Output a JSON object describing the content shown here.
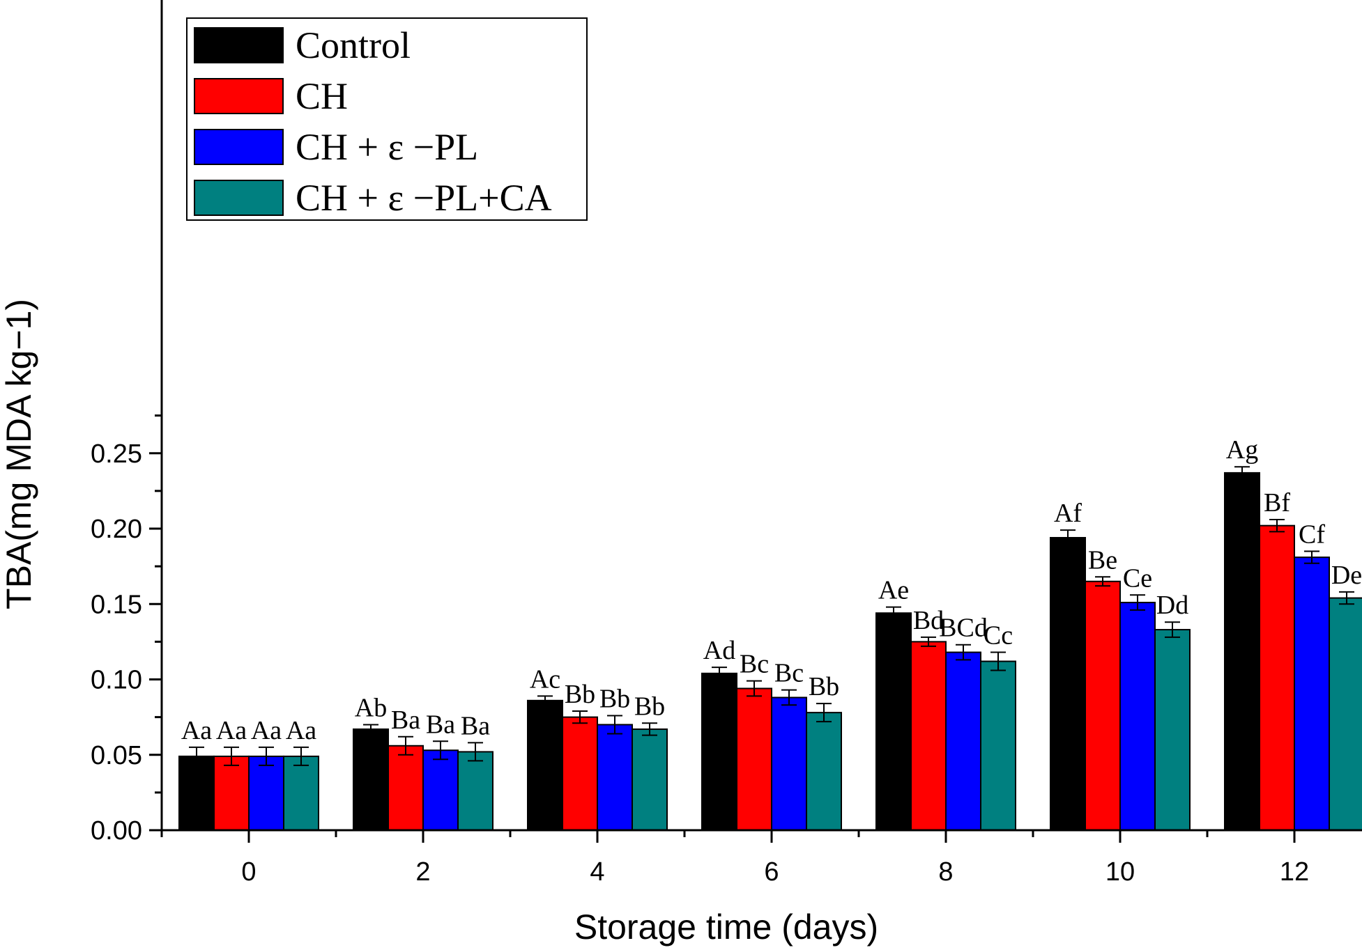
{
  "chart_data": {
    "type": "bar",
    "title": "",
    "xlabel": "Storage time (days)",
    "ylabel": "TBA(mg MDA kg−1)",
    "ylim": [
      0,
      0.275
    ],
    "yticks": [
      "0.00",
      "0.05",
      "0.10",
      "0.15",
      "0.20",
      "0.25"
    ],
    "grid": false,
    "legend_position": "top-left",
    "categories": [
      "0",
      "2",
      "4",
      "6",
      "8",
      "10",
      "12"
    ],
    "series": [
      {
        "name": "Control",
        "color": "#000000",
        "values": [
          0.049,
          0.067,
          0.086,
          0.104,
          0.144,
          0.194,
          0.237
        ],
        "errors": [
          0.006,
          0.003,
          0.003,
          0.004,
          0.004,
          0.005,
          0.004
        ],
        "labels": [
          "Aa",
          "Ab",
          "Ac",
          "Ad",
          "Ae",
          "Af",
          "Ag"
        ]
      },
      {
        "name": "CH",
        "color": "#ff0000",
        "values": [
          0.049,
          0.056,
          0.075,
          0.094,
          0.125,
          0.165,
          0.202
        ],
        "errors": [
          0.006,
          0.006,
          0.004,
          0.005,
          0.003,
          0.003,
          0.004
        ],
        "labels": [
          "Aa",
          "Ba",
          "Bb",
          "Bc",
          "Bd",
          "Be",
          "Bf"
        ]
      },
      {
        "name": "CH + ε −PL",
        "color": "#0000ff",
        "values": [
          0.049,
          0.053,
          0.07,
          0.088,
          0.118,
          0.151,
          0.181
        ],
        "errors": [
          0.006,
          0.006,
          0.006,
          0.005,
          0.005,
          0.005,
          0.004
        ],
        "labels": [
          "Aa",
          "Ba",
          "Bb",
          "Bc",
          "BCd",
          "Ce",
          "Cf"
        ]
      },
      {
        "name": "CH + ε −PL+CA",
        "color": "#008080",
        "values": [
          0.049,
          0.052,
          0.067,
          0.078,
          0.112,
          0.133,
          0.154
        ],
        "errors": [
          0.006,
          0.006,
          0.004,
          0.006,
          0.006,
          0.005,
          0.004
        ],
        "labels": [
          "Aa",
          "Ba",
          "Bb",
          "Bb",
          "Cc",
          "Dd",
          "De"
        ]
      }
    ]
  }
}
